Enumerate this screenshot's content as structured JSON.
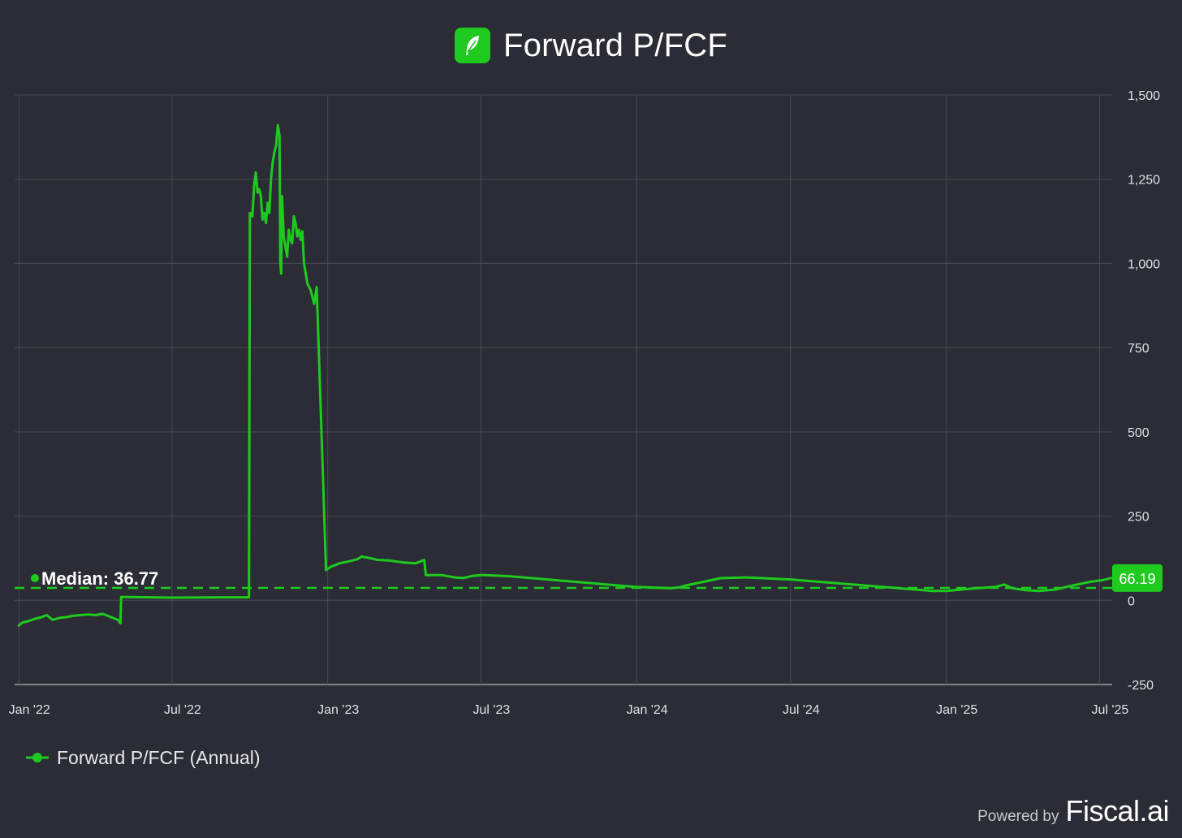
{
  "header": {
    "title": "Forward P/FCF",
    "logo_icon": "feather-icon",
    "logo_color": "#1fca1f"
  },
  "colors": {
    "line": "#1fca1f",
    "background": "#2b2c35",
    "grid": "#4a4b55",
    "text": "#e0e0e4"
  },
  "chart_data": {
    "type": "line",
    "title": "Forward P/FCF",
    "xlabel": "",
    "ylabel": "",
    "ylim": [
      -250,
      1500
    ],
    "y_ticks": [
      "1,500",
      "1,250",
      "1,000",
      "750",
      "500",
      "250",
      "0",
      "-250"
    ],
    "y_tick_values": [
      1500,
      1250,
      1000,
      750,
      500,
      250,
      0,
      -250
    ],
    "x_ticks": [
      "Jan '22",
      "Jul '22",
      "Jan '23",
      "Jul '23",
      "Jan '24",
      "Jul '24",
      "Jan '25",
      "Jul '25"
    ],
    "x_tick_dates": [
      "2022-01-01",
      "2022-07-01",
      "2023-01-01",
      "2023-07-01",
      "2024-01-01",
      "2024-07-01",
      "2025-01-01",
      "2025-07-01"
    ],
    "x_range": [
      "2021-12-27",
      "2025-07-16"
    ],
    "grid": true,
    "legend_position": "bottom-left",
    "median": {
      "label": "Median: 36.77",
      "value": 36.77
    },
    "last_value": {
      "label": "66.19",
      "value": 66.19
    },
    "series": [
      {
        "name": "Forward P/FCF (Annual)",
        "points": [
          [
            "2022-01-01",
            -75
          ],
          [
            "2022-01-05",
            -66
          ],
          [
            "2022-01-12",
            -62
          ],
          [
            "2022-01-20",
            -55
          ],
          [
            "2022-01-28",
            -50
          ],
          [
            "2022-02-03",
            -44
          ],
          [
            "2022-02-10",
            -58
          ],
          [
            "2022-02-18",
            -52
          ],
          [
            "2022-02-26",
            -50
          ],
          [
            "2022-03-06",
            -46
          ],
          [
            "2022-03-15",
            -44
          ],
          [
            "2022-03-24",
            -42
          ],
          [
            "2022-04-02",
            -44
          ],
          [
            "2022-04-10",
            -40
          ],
          [
            "2022-04-18",
            -48
          ],
          [
            "2022-04-28",
            -58
          ],
          [
            "2022-05-01",
            -68
          ],
          [
            "2022-05-02",
            10
          ],
          [
            "2022-07-01",
            8
          ],
          [
            "2022-09-01",
            9
          ],
          [
            "2022-09-30",
            9
          ],
          [
            "2022-10-01",
            1150
          ],
          [
            "2022-10-04",
            1140
          ],
          [
            "2022-10-06",
            1230
          ],
          [
            "2022-10-08",
            1270
          ],
          [
            "2022-10-10",
            1210
          ],
          [
            "2022-10-12",
            1220
          ],
          [
            "2022-10-14",
            1200
          ],
          [
            "2022-10-16",
            1130
          ],
          [
            "2022-10-18",
            1150
          ],
          [
            "2022-10-20",
            1120
          ],
          [
            "2022-10-22",
            1180
          ],
          [
            "2022-10-24",
            1150
          ],
          [
            "2022-10-26",
            1250
          ],
          [
            "2022-10-28",
            1300
          ],
          [
            "2022-10-30",
            1330
          ],
          [
            "2022-11-01",
            1350
          ],
          [
            "2022-11-03",
            1410
          ],
          [
            "2022-11-05",
            1380
          ],
          [
            "2022-11-06",
            1000
          ],
          [
            "2022-11-07",
            970
          ],
          [
            "2022-11-08",
            1200
          ],
          [
            "2022-11-10",
            1080
          ],
          [
            "2022-11-12",
            1050
          ],
          [
            "2022-11-14",
            1020
          ],
          [
            "2022-11-16",
            1100
          ],
          [
            "2022-11-18",
            1070
          ],
          [
            "2022-11-20",
            1060
          ],
          [
            "2022-11-22",
            1140
          ],
          [
            "2022-11-24",
            1120
          ],
          [
            "2022-11-26",
            1080
          ],
          [
            "2022-11-28",
            1100
          ],
          [
            "2022-11-30",
            1070
          ],
          [
            "2022-12-02",
            1095
          ],
          [
            "2022-12-04",
            1000
          ],
          [
            "2022-12-08",
            940
          ],
          [
            "2022-12-12",
            920
          ],
          [
            "2022-12-16",
            880
          ],
          [
            "2022-12-19",
            930
          ],
          [
            "2022-12-30",
            90
          ],
          [
            "2023-01-05",
            100
          ],
          [
            "2023-01-15",
            110
          ],
          [
            "2023-01-25",
            115
          ],
          [
            "2023-02-05",
            122
          ],
          [
            "2023-02-10",
            130
          ],
          [
            "2023-02-20",
            125
          ],
          [
            "2023-03-01",
            120
          ],
          [
            "2023-03-15",
            118
          ],
          [
            "2023-04-01",
            112
          ],
          [
            "2023-04-15",
            110
          ],
          [
            "2023-04-25",
            120
          ],
          [
            "2023-04-27",
            75
          ],
          [
            "2023-05-15",
            75
          ],
          [
            "2023-06-01",
            68
          ],
          [
            "2023-06-10",
            66
          ],
          [
            "2023-06-20",
            72
          ],
          [
            "2023-07-01",
            75
          ],
          [
            "2023-07-05",
            75
          ],
          [
            "2023-08-01",
            72
          ],
          [
            "2023-12-30",
            40
          ],
          [
            "2024-01-20",
            38
          ],
          [
            "2024-02-10",
            36
          ],
          [
            "2024-02-20",
            38
          ],
          [
            "2024-03-01",
            45
          ],
          [
            "2024-03-20",
            55
          ],
          [
            "2024-04-10",
            66
          ],
          [
            "2024-05-10",
            68
          ],
          [
            "2024-07-01",
            62
          ],
          [
            "2024-12-15",
            28
          ],
          [
            "2025-01-01",
            28
          ],
          [
            "2025-02-01",
            35
          ],
          [
            "2025-03-01",
            40
          ],
          [
            "2025-03-10",
            47
          ],
          [
            "2025-03-20",
            36
          ],
          [
            "2025-04-05",
            30
          ],
          [
            "2025-04-20",
            28
          ],
          [
            "2025-05-10",
            32
          ],
          [
            "2025-06-01",
            45
          ],
          [
            "2025-06-20",
            55
          ],
          [
            "2025-07-05",
            60
          ],
          [
            "2025-07-15",
            66.19
          ]
        ]
      }
    ]
  },
  "legend": {
    "label": "Forward P/FCF (Annual)"
  },
  "footer": {
    "powered": "Powered by",
    "brand": "Fiscal.ai"
  }
}
